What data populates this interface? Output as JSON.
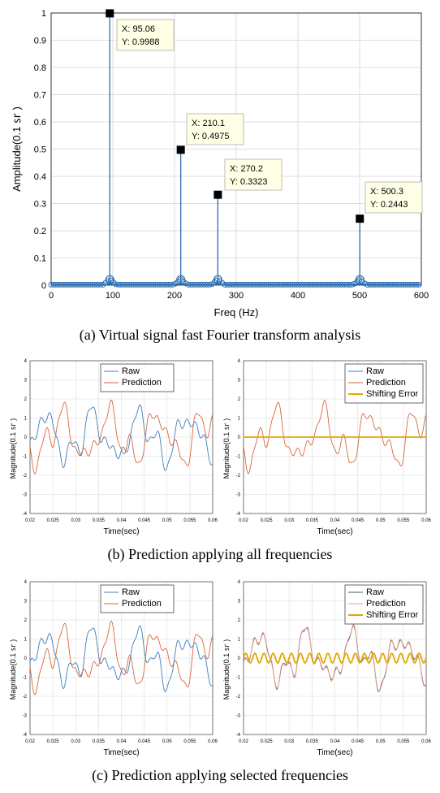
{
  "chart_data": [
    {
      "id": "fft",
      "type": "stem",
      "xlabel": "Freq (Hz)",
      "ylabel": "Amplitude(0.1 ㏛ )",
      "xlim": [
        0,
        600
      ],
      "ylim": [
        0,
        1
      ],
      "xticks": [
        0,
        100,
        200,
        300,
        400,
        500,
        600
      ],
      "yticks": [
        0,
        0.1,
        0.2,
        0.3,
        0.4,
        0.5,
        0.6,
        0.7,
        0.8,
        0.9,
        1
      ],
      "grid": true,
      "peaks": [
        {
          "x": 95.06,
          "y": 0.9988,
          "label_x": "X: 95.06",
          "label_y": "Y: 0.9988"
        },
        {
          "x": 210.1,
          "y": 0.4975,
          "label_x": "X: 210.1",
          "label_y": "Y: 0.4975"
        },
        {
          "x": 270.2,
          "y": 0.3323,
          "label_x": "X: 270.2",
          "label_y": "Y: 0.3323"
        },
        {
          "x": 500.3,
          "y": 0.2443,
          "label_x": "X: 500.3",
          "label_y": "Y: 0.2443"
        }
      ],
      "caption": "(a) Virtual signal fast Fourier transform analysis"
    },
    {
      "id": "b_left",
      "type": "line",
      "xlabel": "Time(sec)",
      "ylabel": "Magnitude(0.1 ㏛ )",
      "xlim": [
        0.02,
        0.06
      ],
      "ylim": [
        -4,
        4
      ],
      "xticks": [
        "0.02",
        "0.025",
        "0.03",
        "0.035",
        "0.04",
        "0.045",
        "0.05",
        "0.055",
        "0.06"
      ],
      "yticks": [
        "-4",
        "-3",
        "-2",
        "-1",
        "0",
        "1",
        "2",
        "3",
        "4"
      ],
      "legend": [
        "Raw",
        "Prediction"
      ],
      "legend_position": "top-right",
      "series": [
        {
          "name": "Raw",
          "color": "#3b7fbf"
        },
        {
          "name": "Prediction",
          "color": "#d9673a"
        }
      ]
    },
    {
      "id": "b_right",
      "type": "line",
      "xlabel": "Time(sec)",
      "ylabel": "Magnitude(0.1 ㏛ )",
      "xlim": [
        0.02,
        0.06
      ],
      "ylim": [
        -4,
        4
      ],
      "xticks": [
        "0.02",
        "0.025",
        "0.03",
        "0.035",
        "0.04",
        "0.045",
        "0.05",
        "0.055",
        "0.06"
      ],
      "yticks": [
        "-4",
        "-3",
        "-2",
        "-1",
        "0",
        "1",
        "2",
        "3",
        "4"
      ],
      "legend": [
        "Raw",
        "Prediction",
        "Shifting Error"
      ],
      "legend_position": "top-right",
      "series": [
        {
          "name": "Raw",
          "color": "#3b7fbf"
        },
        {
          "name": "Prediction",
          "color": "#d9673a"
        },
        {
          "name": "Shifting Error",
          "color": "#e0a800"
        }
      ]
    },
    {
      "id": "c_left",
      "type": "line",
      "xlabel": "Time(sec)",
      "ylabel": "Magnitude(0.1 ㏛ )",
      "xlim": [
        0.02,
        0.06
      ],
      "ylim": [
        -4,
        4
      ],
      "xticks": [
        "0.02",
        "0.025",
        "0.03",
        "0.035",
        "0.04",
        "0.045",
        "0.05",
        "0.055",
        "0.06"
      ],
      "yticks": [
        "-4",
        "-3",
        "-2",
        "-1",
        "0",
        "1",
        "2",
        "3",
        "4"
      ],
      "legend": [
        "Raw",
        "Prediction"
      ],
      "legend_position": "top-right",
      "series": [
        {
          "name": "Raw",
          "color": "#3b7fbf"
        },
        {
          "name": "Prediction",
          "color": "#d9673a"
        }
      ]
    },
    {
      "id": "c_right",
      "type": "line",
      "xlabel": "Time(sec)",
      "ylabel": "Magnitude(0.1 ㏛ )",
      "xlim": [
        0.02,
        0.06
      ],
      "ylim": [
        -4,
        4
      ],
      "xticks": [
        "0.02",
        "0.025",
        "0.03",
        "0.035",
        "0.04",
        "0.045",
        "0.05",
        "0.055",
        "0.06"
      ],
      "yticks": [
        "-4",
        "-3",
        "-2",
        "-1",
        "0",
        "1",
        "2",
        "3",
        "4"
      ],
      "legend": [
        "Raw",
        "Prediction",
        "Shifting Error"
      ],
      "legend_position": "top-right",
      "series": [
        {
          "name": "Raw",
          "color": "#555555"
        },
        {
          "name": "Prediction",
          "color": "#e8a090"
        },
        {
          "name": "Shifting Error",
          "color": "#e0a800"
        }
      ]
    }
  ],
  "captions": {
    "b": "(b) Prediction applying all frequencies",
    "c": "(c) Prediction applying selected frequencies"
  }
}
